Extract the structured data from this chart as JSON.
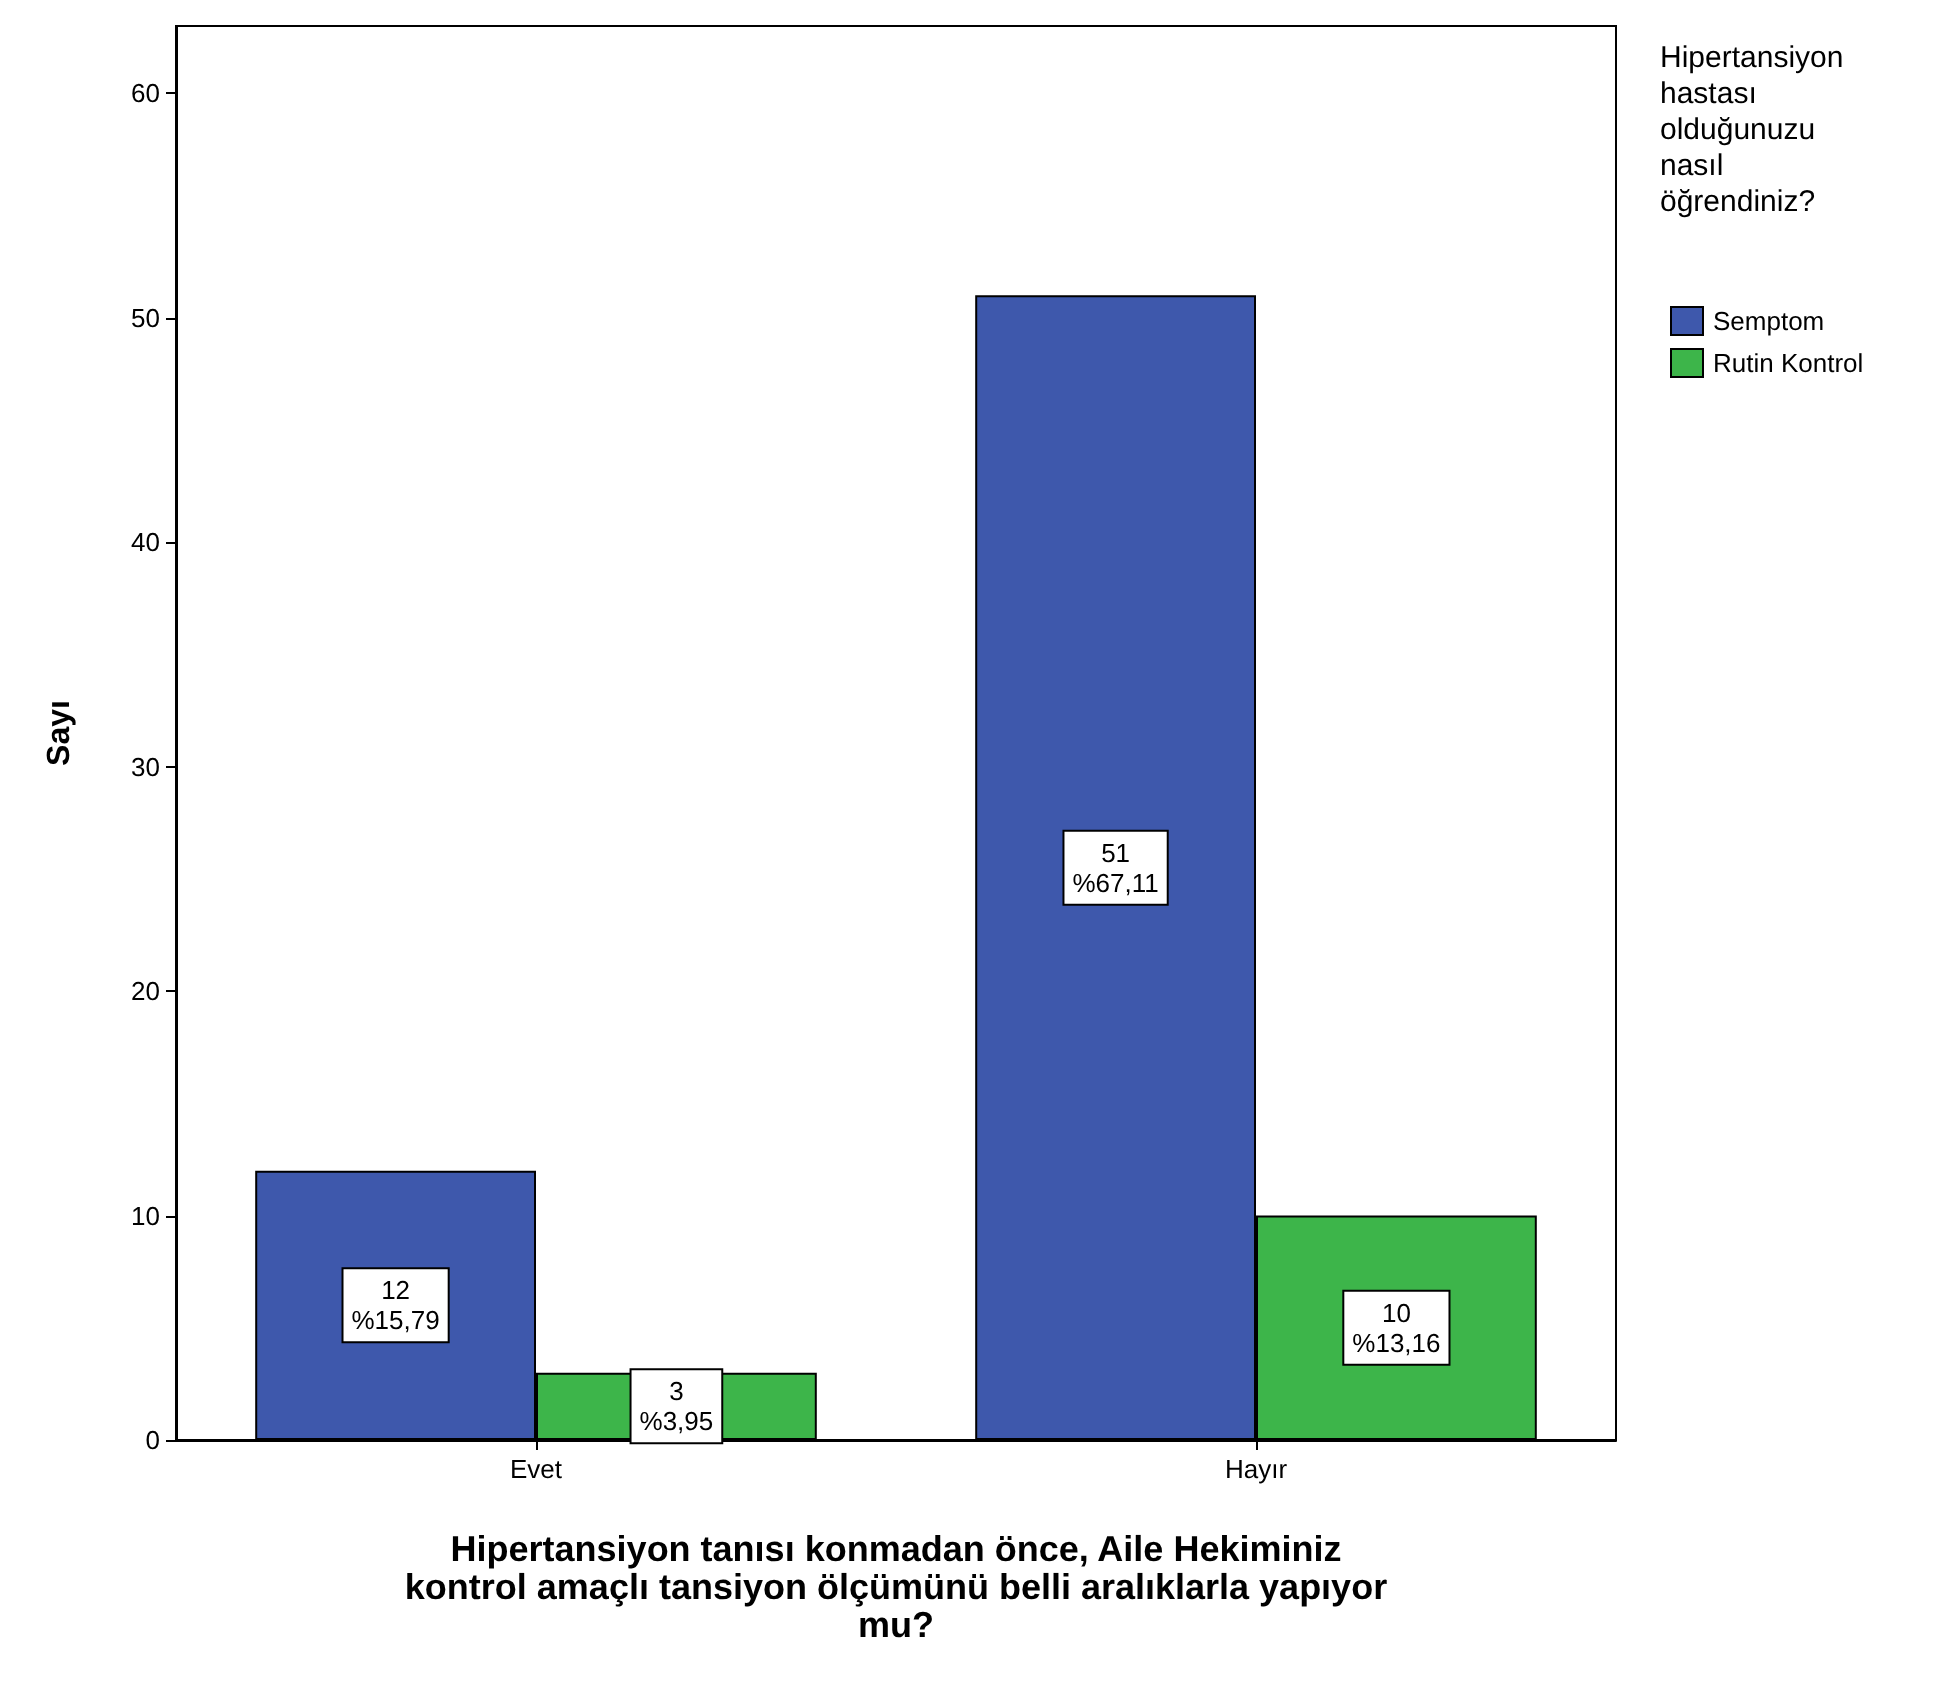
{
  "chart_data": {
    "type": "bar",
    "xlabel": "Hipertansiyon tanısı konmadan önce, Aile Hekiminiz\nkontrol amaçlı tansiyon ölçümünü belli aralıklarla yapıyor\nmu?",
    "ylabel": "Sayı",
    "legend_title": "Hipertansiyon\nhastası\nolduğunuzu\nnasıl\nöğrendiniz?",
    "categories": [
      "Evet",
      "Hayır"
    ],
    "series": [
      {
        "name": "Semptom",
        "color": "#3e58ac",
        "values": [
          12,
          51
        ],
        "value_labels": [
          "12\n%15,79",
          "51\n%67,11"
        ]
      },
      {
        "name": "Rutin Kontrol",
        "color": "#3db54a",
        "values": [
          3,
          10
        ],
        "value_labels": [
          "3\n%3,95",
          "10\n%13,16"
        ]
      }
    ],
    "ylim": [
      0,
      63
    ],
    "yticks": [
      0,
      10,
      20,
      30,
      40,
      50,
      60
    ],
    "grid": false,
    "legend": "right"
  }
}
